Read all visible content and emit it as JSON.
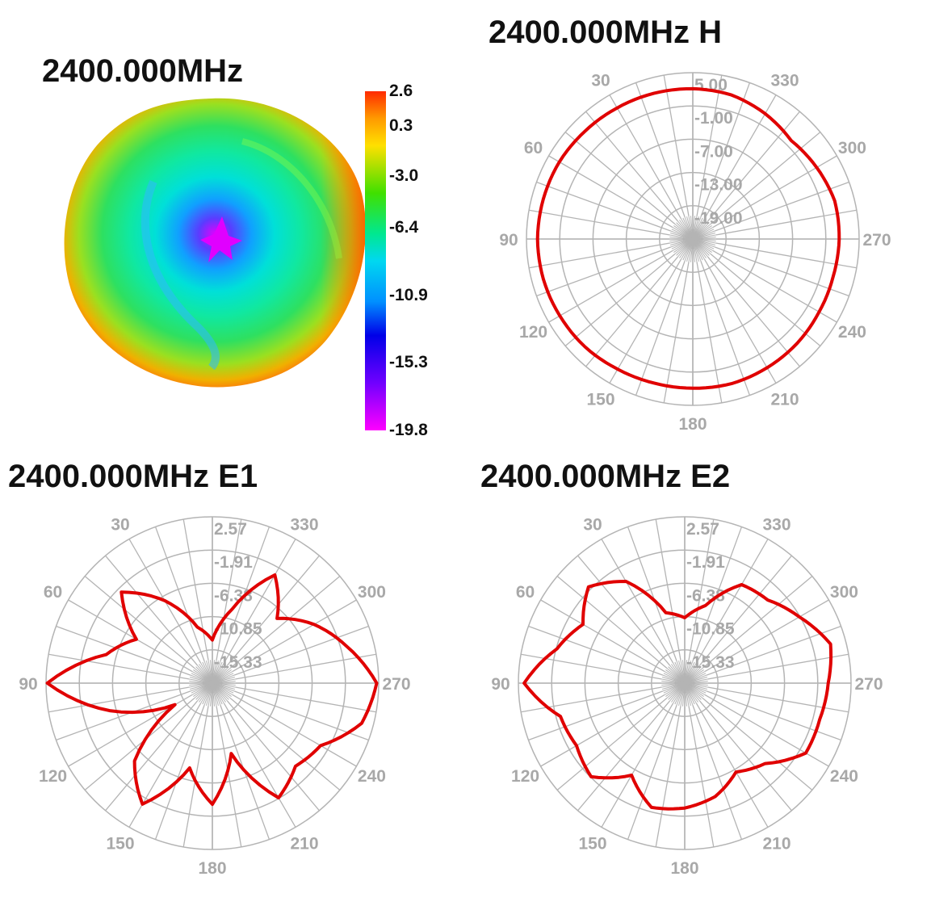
{
  "panels": {
    "surface": {
      "title": "2400.000MHz"
    },
    "h": {
      "title": "2400.000MHz  H"
    },
    "e1": {
      "title": "2400.000MHz  E1"
    },
    "e2": {
      "title": "2400.000MHz  E2"
    }
  },
  "colorbar": {
    "labels": [
      "2.6",
      "0.3",
      "-3.0",
      "-6.4",
      "-10.9",
      "-15.3",
      "-19.8"
    ],
    "colors": [
      "#ff2a00",
      "#ffd000",
      "#1fe000",
      "#00d8e8",
      "#0000e0",
      "#e000ff"
    ]
  },
  "colors": {
    "trace": "#e00000",
    "grid": "#b4b4b4",
    "grid_text": "#a8a8a8"
  },
  "chart_data": [
    {
      "type": "3d-surface",
      "title": "2400.000MHz",
      "colorbar_ticks": [
        2.6,
        0.3,
        -3.0,
        -6.4,
        -10.9,
        -15.3,
        -19.8
      ],
      "unit_range": [
        -19.8,
        2.6
      ]
    },
    {
      "type": "polar",
      "title": "2400.000MHz  H",
      "rings": [
        "5.00",
        "-1.00",
        "-7.00",
        "-13.00",
        "-19.00"
      ],
      "r_range": [
        -25,
        5
      ],
      "angle_labels": [
        "30",
        "330",
        "60",
        "300",
        "90",
        "270",
        "120",
        "240",
        "150",
        "210",
        "180"
      ],
      "series": [
        {
          "theta": [
            0,
            15,
            30,
            45,
            60,
            75,
            90,
            105,
            120,
            135,
            150,
            165,
            180,
            195,
            210,
            225,
            240,
            255,
            270,
            285,
            300,
            315,
            330,
            345
          ],
          "values": [
            2.1,
            2.2,
            2.3,
            2.5,
            2.8,
            2.9,
            3.0,
            2.9,
            2.7,
            2.5,
            2.1,
            1.9,
            1.9,
            2.0,
            1.8,
            1.6,
            1.3,
            1.2,
            1.4,
            1.5,
            0.8,
            0.1,
            1.1,
            1.9
          ]
        }
      ]
    },
    {
      "type": "polar",
      "title": "2400.000MHz  E1",
      "rings": [
        "2.57",
        "-1.91",
        "-6.38",
        "-10.85",
        "-15.33"
      ],
      "r_range": [
        -19.8,
        2.57
      ],
      "angle_labels": [
        "30",
        "330",
        "60",
        "300",
        "90",
        "270",
        "120",
        "240",
        "150",
        "210",
        "180"
      ],
      "series": [
        {
          "theta": [
            0,
            15,
            30,
            45,
            60,
            75,
            90,
            105,
            120,
            135,
            150,
            165,
            180,
            195,
            210,
            225,
            240,
            255,
            270,
            285,
            300,
            315,
            330,
            345
          ],
          "values": [
            -14.0,
            -12.0,
            -7.0,
            -2.5,
            -8.0,
            -5.0,
            2.4,
            -5.5,
            -14.0,
            -5.0,
            -1.0,
            -8.0,
            -3.5,
            -10.0,
            -2.0,
            -4.0,
            -3.0,
            1.0,
            2.3,
            -1.0,
            -4.0,
            -7.5,
            -3.0,
            -9.5
          ]
        }
      ]
    },
    {
      "type": "polar",
      "title": "2400.000MHz  E2",
      "rings": [
        "2.57",
        "-1.91",
        "-6.38",
        "-10.85",
        "-15.33"
      ],
      "r_range": [
        -19.8,
        2.57
      ],
      "angle_labels": [
        "30",
        "330",
        "60",
        "300",
        "90",
        "270",
        "120",
        "240",
        "150",
        "210",
        "180"
      ],
      "series": [
        {
          "theta": [
            0,
            15,
            30,
            45,
            60,
            75,
            90,
            105,
            120,
            135,
            150,
            165,
            180,
            195,
            210,
            225,
            240,
            255,
            270,
            285,
            300,
            315,
            330,
            345
          ],
          "values": [
            -11.0,
            -10.0,
            -4.0,
            -1.5,
            -4.0,
            -2.0,
            1.8,
            -2.5,
            -3.0,
            -2.0,
            -5.5,
            -2.5,
            -3.0,
            -4.0,
            -6.0,
            -4.5,
            -1.0,
            -1.0,
            -0.5,
            0.5,
            -2.0,
            -4.0,
            -4.5,
            -9.0
          ]
        }
      ]
    }
  ]
}
